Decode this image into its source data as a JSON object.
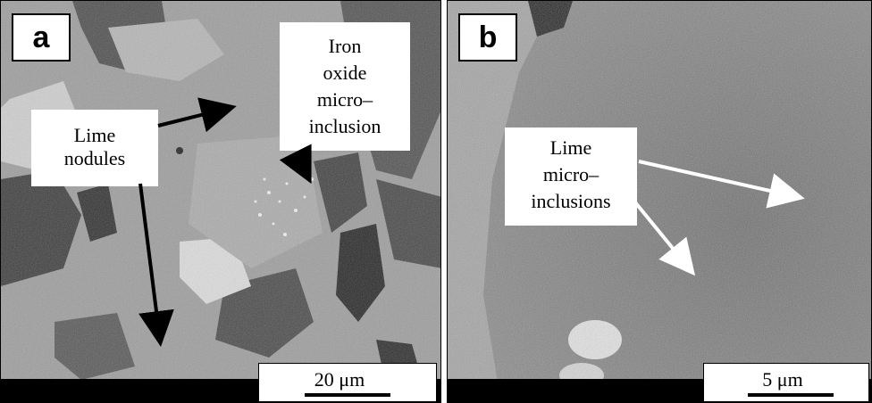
{
  "panel_a": {
    "letter": "a",
    "label_lime_nodules": [
      "Lime",
      "nodules"
    ],
    "label_iron_oxide": [
      "Iron",
      "oxide",
      "micro–",
      "inclusion"
    ],
    "scale_label": "20 μm"
  },
  "panel_b": {
    "letter": "b",
    "label_lime_micro": [
      "Lime",
      "micro–",
      "inclusions"
    ],
    "scale_label": "5 μm"
  },
  "colors": {
    "matrix_a": "#a9a9a9",
    "dark_grain": "#5a5a5a",
    "matrix_b": "#7b7b7b",
    "white_arrow": "#ffffff",
    "black_arrow": "#000000"
  }
}
